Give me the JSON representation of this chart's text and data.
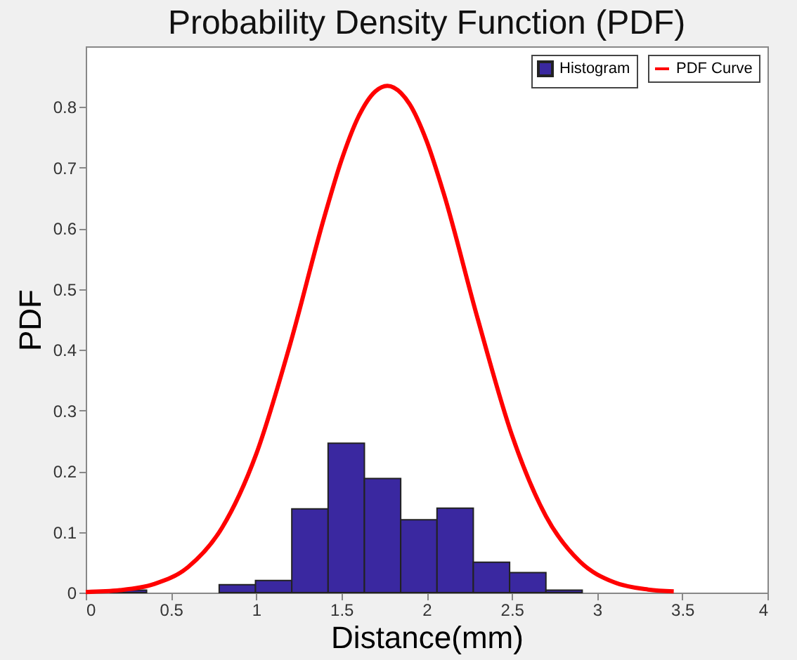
{
  "chart_data": {
    "type": "histogram",
    "title": "Probability Density Function (PDF)",
    "xlabel": "Distance(mm)",
    "ylabel": "PDF",
    "xlim": [
      0,
      4
    ],
    "xticks": [
      0,
      0.5,
      1,
      1.5,
      2,
      2.5,
      3,
      3.5,
      4
    ],
    "ylim": [
      0,
      0.9
    ],
    "yticks": [
      0,
      0.1,
      0.2,
      0.3,
      0.4,
      0.5,
      0.6,
      0.7,
      0.8
    ],
    "grid": false,
    "legend": "top right",
    "series": [
      {
        "name": "Histogram",
        "color": "#3a28a0",
        "bins": [
          0.144,
          0.357,
          0.57,
          0.783,
          0.996,
          1.209,
          1.422,
          1.635,
          1.848,
          2.061,
          2.274,
          2.487,
          2.7,
          2.913
        ],
        "values": [
          0.004,
          null,
          null,
          0.013,
          0.02,
          0.138,
          0.246,
          0.188,
          0.12,
          0.139,
          0.05,
          0.033,
          0.004
        ]
      },
      {
        "name": "PDF Curve",
        "type": "line",
        "color": "#ff0000",
        "x": [
          0,
          0.2,
          0.4,
          0.6,
          0.8,
          1.0,
          1.2,
          1.4,
          1.5,
          1.6,
          1.7,
          1.77,
          1.85,
          1.9,
          2.0,
          2.1,
          2.3,
          2.5,
          2.7,
          2.9,
          3.1,
          3.3,
          3.45
        ],
        "values": [
          0.001,
          0.004,
          0.014,
          0.042,
          0.107,
          0.228,
          0.41,
          0.619,
          0.712,
          0.784,
          0.826,
          0.835,
          0.823,
          0.805,
          0.744,
          0.658,
          0.451,
          0.26,
          0.126,
          0.051,
          0.017,
          0.005,
          0.002
        ]
      }
    ]
  }
}
